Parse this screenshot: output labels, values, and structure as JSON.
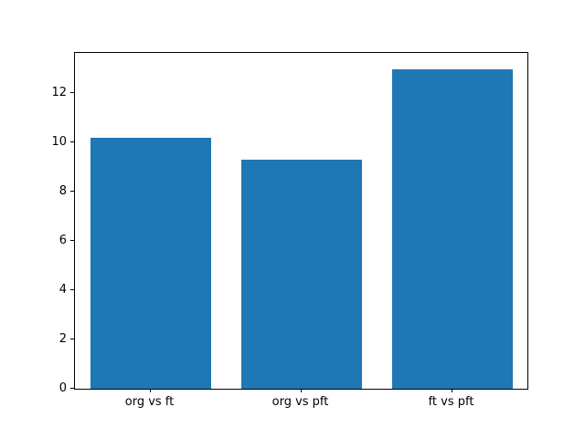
{
  "chart_data": {
    "type": "bar",
    "title": "",
    "xlabel": "",
    "ylabel": "",
    "categories": [
      "org vs ft",
      "org vs pft",
      "ft vs pft"
    ],
    "values": [
      10.2,
      9.3,
      13.0
    ],
    "bar_color": "#1f77b4",
    "axis_color": "#000000",
    "background_color": "#ffffff",
    "ylim": [
      0,
      13.65
    ],
    "xlim": [
      -0.5,
      2.5
    ],
    "yticks": [
      0,
      2,
      4,
      6,
      8,
      10,
      12
    ],
    "bar_width": 0.8,
    "grid": false,
    "legend": null
  }
}
